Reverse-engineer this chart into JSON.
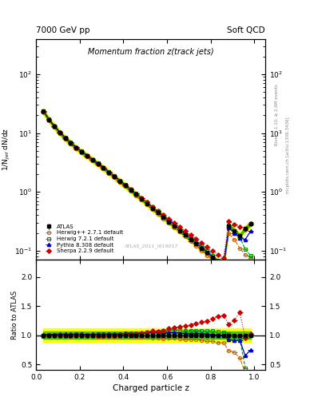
{
  "title_main": "Momentum fraction z(track jets)",
  "header_left": "7000 GeV pp",
  "header_right": "Soft QCD",
  "right_label_top": "Rivet 3.1.10, ≥ 2.6M events",
  "right_label_bottom": "mcplots.cern.ch [arXiv:1306.3436]",
  "watermark": "ATLAS_2011_I919017",
  "xlabel": "Charged particle z",
  "ylabel_main": "1/N$_{jet}$ dN/dz",
  "ylabel_ratio": "Ratio to ATLAS",
  "xlim": [
    0.0,
    1.05
  ],
  "ylim_main": [
    0.07,
    400
  ],
  "ylim_ratio": [
    0.4,
    2.3
  ],
  "z_values": [
    0.033,
    0.058,
    0.083,
    0.108,
    0.133,
    0.158,
    0.183,
    0.208,
    0.233,
    0.258,
    0.283,
    0.308,
    0.333,
    0.358,
    0.383,
    0.408,
    0.433,
    0.458,
    0.483,
    0.508,
    0.533,
    0.558,
    0.583,
    0.608,
    0.633,
    0.658,
    0.683,
    0.708,
    0.733,
    0.758,
    0.783,
    0.808,
    0.833,
    0.858,
    0.883,
    0.908,
    0.933,
    0.958,
    0.983
  ],
  "atlas_values": [
    23.5,
    17.0,
    13.0,
    10.2,
    8.2,
    6.8,
    5.6,
    4.8,
    4.1,
    3.5,
    3.0,
    2.55,
    2.15,
    1.82,
    1.52,
    1.28,
    1.07,
    0.9,
    0.75,
    0.63,
    0.52,
    0.44,
    0.37,
    0.31,
    0.26,
    0.22,
    0.185,
    0.155,
    0.13,
    0.109,
    0.092,
    0.077,
    0.065,
    0.055,
    0.265,
    0.22,
    0.18,
    0.24,
    0.285
  ],
  "atlas_errors": [
    0.5,
    0.35,
    0.27,
    0.21,
    0.17,
    0.14,
    0.115,
    0.1,
    0.085,
    0.072,
    0.062,
    0.053,
    0.045,
    0.038,
    0.032,
    0.027,
    0.022,
    0.019,
    0.016,
    0.013,
    0.011,
    0.009,
    0.008,
    0.007,
    0.006,
    0.005,
    0.004,
    0.0035,
    0.003,
    0.0025,
    0.002,
    0.002,
    0.0015,
    0.0015,
    0.007,
    0.006,
    0.005,
    0.007,
    0.008
  ],
  "herwig271_values": [
    23.0,
    16.8,
    12.8,
    10.0,
    8.0,
    6.6,
    5.5,
    4.7,
    4.0,
    3.42,
    2.92,
    2.48,
    2.09,
    1.77,
    1.48,
    1.25,
    1.04,
    0.87,
    0.73,
    0.61,
    0.5,
    0.42,
    0.35,
    0.295,
    0.248,
    0.207,
    0.172,
    0.143,
    0.12,
    0.1,
    0.083,
    0.069,
    0.057,
    0.048,
    0.195,
    0.155,
    0.11,
    0.085,
    0.075
  ],
  "herwig721_values": [
    23.2,
    17.1,
    13.1,
    10.3,
    8.3,
    6.9,
    5.7,
    4.9,
    4.15,
    3.55,
    3.05,
    2.6,
    2.2,
    1.86,
    1.56,
    1.32,
    1.11,
    0.93,
    0.78,
    0.66,
    0.55,
    0.47,
    0.4,
    0.34,
    0.285,
    0.24,
    0.2,
    0.168,
    0.141,
    0.118,
    0.099,
    0.083,
    0.069,
    0.058,
    0.27,
    0.215,
    0.17,
    0.105,
    0.082
  ],
  "pythia_values": [
    23.8,
    17.2,
    13.2,
    10.4,
    8.35,
    6.92,
    5.72,
    4.88,
    4.16,
    3.56,
    3.06,
    2.6,
    2.2,
    1.86,
    1.56,
    1.32,
    1.11,
    0.93,
    0.78,
    0.66,
    0.55,
    0.46,
    0.385,
    0.325,
    0.273,
    0.228,
    0.191,
    0.159,
    0.134,
    0.112,
    0.094,
    0.078,
    0.065,
    0.055,
    0.245,
    0.2,
    0.165,
    0.155,
    0.215
  ],
  "sherpa_values": [
    23.3,
    17.0,
    13.0,
    10.2,
    8.2,
    6.8,
    5.6,
    4.8,
    4.1,
    3.5,
    3.0,
    2.55,
    2.15,
    1.82,
    1.53,
    1.3,
    1.09,
    0.92,
    0.78,
    0.66,
    0.56,
    0.47,
    0.4,
    0.345,
    0.295,
    0.252,
    0.215,
    0.183,
    0.157,
    0.134,
    0.115,
    0.099,
    0.086,
    0.074,
    0.315,
    0.278,
    0.25,
    0.23,
    0.29
  ],
  "atlas_color": "black",
  "herwig271_color": "#cc6600",
  "herwig721_color": "#009900",
  "pythia_color": "#0000cc",
  "sherpa_color": "#cc0000",
  "band_yellow": "#ffff00",
  "band_green": "#00bb00",
  "ratio_yticks": [
    0.5,
    1.0,
    1.5,
    2.0
  ]
}
